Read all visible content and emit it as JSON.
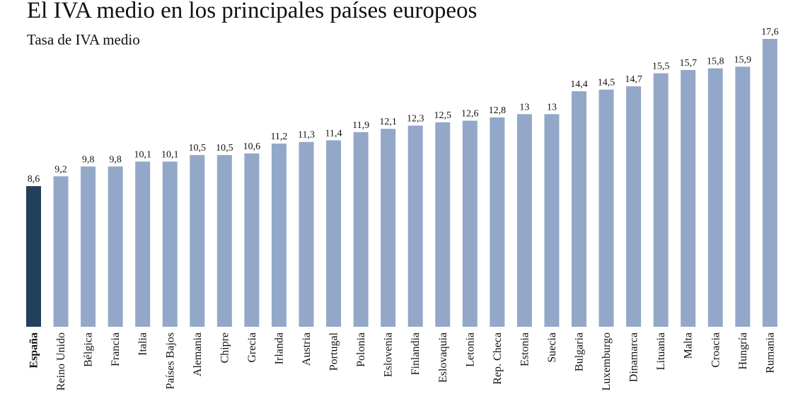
{
  "chart_data": {
    "type": "bar",
    "title": "El IVA medio en los principales países europeos",
    "subtitle": "Tasa de IVA medio",
    "xlabel": "",
    "ylabel": "",
    "ylim": [
      0,
      17.6
    ],
    "grid": false,
    "categories": [
      "España",
      "Reino Unido",
      "Bélgica",
      "Francia",
      "Italia",
      "Países Bajos",
      "Alemania",
      "Chipre",
      "Grecia",
      "Irlanda",
      "Austria",
      "Portugal",
      "Polonia",
      "Eslovenia",
      "Finlandia",
      "Eslovaquia",
      "Letonia",
      "Rep. Checa",
      "Estonia",
      "Suecia",
      "Bulgaria",
      "Luxemburgo",
      "Dinamarca",
      "Lituania",
      "Malta",
      "Croacia",
      "Hungría",
      "Rumania"
    ],
    "values": [
      8.6,
      9.2,
      9.8,
      9.8,
      10.1,
      10.1,
      10.5,
      10.5,
      10.6,
      11.2,
      11.3,
      11.4,
      11.9,
      12.1,
      12.3,
      12.5,
      12.6,
      12.8,
      13,
      13,
      14.4,
      14.5,
      14.7,
      15.5,
      15.7,
      15.8,
      15.9,
      17.6
    ],
    "value_labels": [
      "8,6",
      "9,2",
      "9,8",
      "9,8",
      "10,1",
      "10,1",
      "10,5",
      "10,5",
      "10,6",
      "11,2",
      "11,3",
      "11,4",
      "11,9",
      "12,1",
      "12,3",
      "12,5",
      "12,6",
      "12,8",
      "13",
      "13",
      "14,4",
      "14,5",
      "14,7",
      "15,5",
      "15,7",
      "15,8",
      "15,9",
      "17,6"
    ],
    "highlight": "España",
    "colors": {
      "highlight": "#22405c",
      "default": "#93a8c8"
    }
  }
}
